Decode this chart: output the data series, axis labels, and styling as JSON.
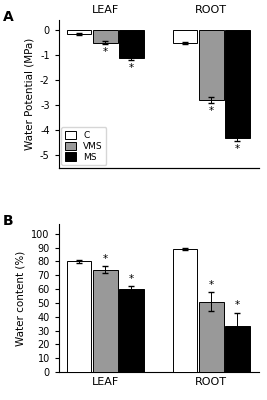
{
  "panel_A": {
    "groups": [
      "LEAF",
      "ROOT"
    ],
    "series": [
      "C",
      "VMS",
      "MS"
    ],
    "values": [
      [
        -0.15,
        -0.5,
        -1.1
      ],
      [
        -0.5,
        -2.8,
        -4.3
      ]
    ],
    "errors": [
      [
        0.03,
        0.07,
        0.1
      ],
      [
        0.04,
        0.12,
        0.12
      ]
    ],
    "ylabel": "Water Potential (MPa)",
    "ylim": [
      -5.5,
      0.4
    ],
    "yticks": [
      0,
      -1,
      -2,
      -3,
      -4,
      -5
    ],
    "asterisk_series": [
      1,
      2
    ],
    "colors": [
      "white",
      "#999999",
      "black"
    ],
    "edgecolor": "black"
  },
  "panel_B": {
    "groups": [
      "LEAF",
      "ROOT"
    ],
    "series": [
      "C",
      "VMS",
      "MS"
    ],
    "values": [
      [
        80,
        74,
        60
      ],
      [
        89,
        51,
        33
      ]
    ],
    "errors": [
      [
        1.0,
        2.5,
        2.0
      ],
      [
        1.0,
        7.0,
        10.0
      ]
    ],
    "ylabel": "Water content (%)",
    "ylim": [
      0,
      107
    ],
    "yticks": [
      0,
      10,
      20,
      30,
      40,
      50,
      60,
      70,
      80,
      90,
      100
    ],
    "asterisk_series": [
      1,
      2
    ],
    "colors": [
      "white",
      "#999999",
      "black"
    ],
    "edgecolor": "black"
  },
  "legend_labels": [
    "C",
    "VMS",
    "MS"
  ],
  "bar_width": 0.18,
  "group_centers": [
    0.32,
    1.05
  ]
}
